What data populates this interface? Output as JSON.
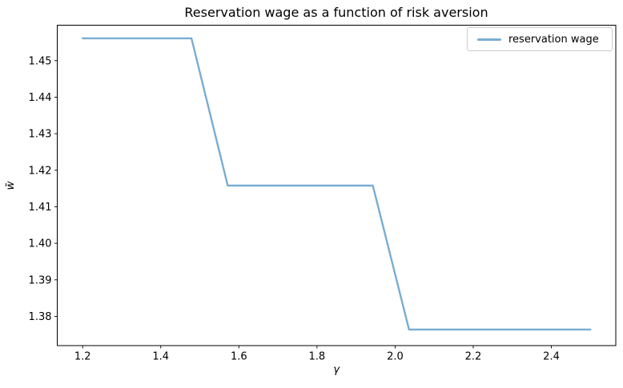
{
  "chart_data": {
    "type": "line",
    "title": "Reservation wage as a function of risk aversion",
    "xlabel": "γ",
    "ylabel": "w̄",
    "grid": false,
    "background": "#ffffff",
    "axis_color": "#000000",
    "xlim": [
      1.135,
      2.565
    ],
    "ylim": [
      1.372,
      1.4597
    ],
    "x_tick_values": [
      1.2,
      1.4,
      1.6,
      1.8,
      2.0,
      2.2,
      2.4
    ],
    "x_tick_labels": [
      "1.2",
      "1.4",
      "1.6",
      "1.8",
      "2.0",
      "2.2",
      "2.4"
    ],
    "y_tick_values": [
      1.38,
      1.39,
      1.4,
      1.41,
      1.42,
      1.43,
      1.44,
      1.45
    ],
    "y_tick_labels": [
      "1.38",
      "1.39",
      "1.40",
      "1.41",
      "1.42",
      "1.43",
      "1.44",
      "1.45"
    ],
    "legend": {
      "position": "upper right",
      "entries": [
        {
          "label": "reservation wage",
          "color": "#79add2"
        }
      ]
    },
    "series": [
      {
        "name": "reservation wage",
        "color": "#79add2",
        "line_width": 2.4,
        "x": [
          1.2,
          1.2929,
          1.3857,
          1.4786,
          1.5714,
          1.6643,
          1.7571,
          1.85,
          1.9429,
          2.0357,
          2.1286,
          2.2214,
          2.3143,
          2.4071,
          2.5
        ],
        "y": [
          1.4561,
          1.4561,
          1.4561,
          1.4561,
          1.4158,
          1.4158,
          1.4158,
          1.4158,
          1.4158,
          1.3764,
          1.3764,
          1.3764,
          1.3764,
          1.3764,
          1.3764
        ]
      }
    ]
  }
}
